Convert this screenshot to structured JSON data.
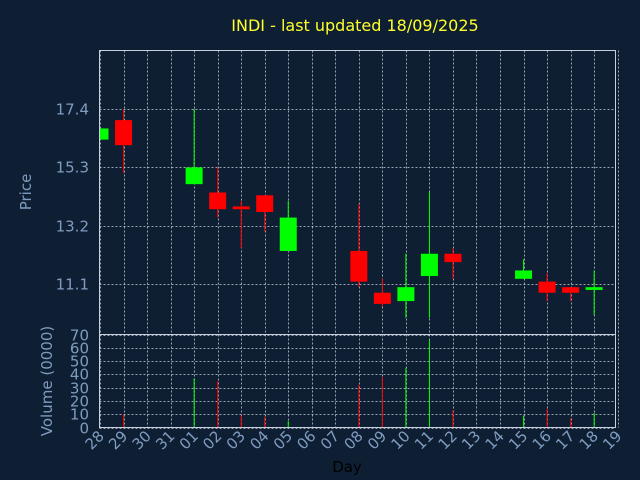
{
  "chart_data": {
    "type": "candlestick",
    "title": "INDI - last updated 18/09/2025",
    "ylabel": "Price",
    "volume_label": "Volume (0000)",
    "xlabel": "Day",
    "ylim": [
      9.3,
      19.5
    ],
    "volume_ylim": [
      0,
      70
    ],
    "yticks": [
      "11.1",
      "13.2",
      "15.3",
      "17.4"
    ],
    "volume_yticks": [
      "0",
      "10",
      "20",
      "30",
      "40",
      "50",
      "60",
      "70"
    ],
    "xticks": [
      "28",
      "29",
      "30",
      "31",
      "01",
      "02",
      "03",
      "04",
      "05",
      "06",
      "07",
      "08",
      "09",
      "10",
      "11",
      "12",
      "13",
      "14",
      "15",
      "16",
      "17",
      "18",
      "19"
    ],
    "grid": true,
    "colors": {
      "background": "#0f1f33",
      "up": "#00ff00",
      "down": "#ff0000",
      "title": "#ffff2a",
      "axis_text": "#7f9cc0",
      "grid": "#c8d0dc"
    },
    "candles": [
      {
        "day": "28",
        "open": 16.3,
        "close": 16.7,
        "high": 16.7,
        "low": 16.3,
        "volume": 0
      },
      {
        "day": "29",
        "open": 17.0,
        "close": 16.1,
        "high": 17.4,
        "low": 15.1,
        "volume": 10
      },
      {
        "day": "01",
        "open": 14.7,
        "close": 15.3,
        "high": 17.4,
        "low": 14.7,
        "volume": 37
      },
      {
        "day": "02",
        "open": 14.4,
        "close": 13.8,
        "high": 15.3,
        "low": 13.5,
        "volume": 35
      },
      {
        "day": "03",
        "open": 13.9,
        "close": 13.8,
        "high": 14.1,
        "low": 12.4,
        "volume": 9
      },
      {
        "day": "04",
        "open": 14.3,
        "close": 13.7,
        "high": 14.3,
        "low": 13.0,
        "volume": 8
      },
      {
        "day": "05",
        "open": 12.3,
        "close": 13.5,
        "high": 14.1,
        "low": 12.3,
        "volume": 5
      },
      {
        "day": "08",
        "open": 12.3,
        "close": 11.2,
        "high": 14.0,
        "low": 11.0,
        "volume": 32
      },
      {
        "day": "09",
        "open": 10.8,
        "close": 10.4,
        "high": 11.3,
        "low": 10.3,
        "volume": 38
      },
      {
        "day": "10",
        "open": 10.5,
        "close": 11.0,
        "high": 12.2,
        "low": 9.9,
        "volume": 45
      },
      {
        "day": "11",
        "open": 11.4,
        "close": 12.2,
        "high": 14.4,
        "low": 9.9,
        "volume": 66
      },
      {
        "day": "12",
        "open": 12.2,
        "close": 11.9,
        "high": 12.4,
        "low": 11.3,
        "volume": 13
      },
      {
        "day": "15",
        "open": 11.3,
        "close": 11.6,
        "high": 12.0,
        "low": 11.3,
        "volume": 9
      },
      {
        "day": "16",
        "open": 11.2,
        "close": 10.8,
        "high": 11.5,
        "low": 10.5,
        "volume": 14
      },
      {
        "day": "17",
        "open": 11.0,
        "close": 10.8,
        "high": 11.0,
        "low": 10.5,
        "volume": 7
      },
      {
        "day": "18",
        "open": 10.9,
        "close": 11.0,
        "high": 11.6,
        "low": 10.0,
        "volume": 11
      }
    ]
  }
}
